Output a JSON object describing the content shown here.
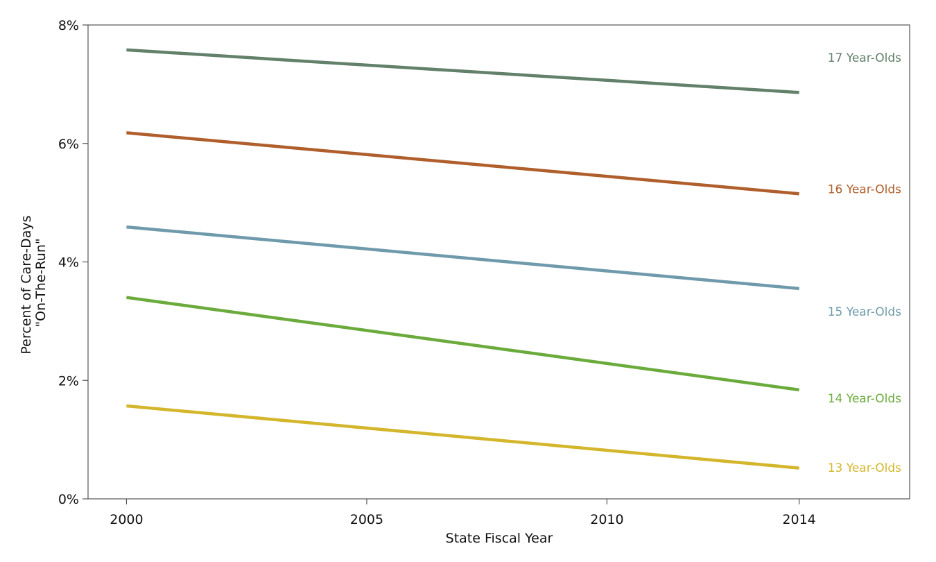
{
  "chart_data": {
    "type": "line",
    "xlabel": "State Fiscal Year",
    "ylabel_lines": [
      "Percent of Care-Days",
      "\"On-The-Run\""
    ],
    "xlim": [
      1999.2,
      2016.3
    ],
    "ylim": [
      0,
      8
    ],
    "x_ticks": [
      2000,
      2005,
      2010,
      2014
    ],
    "y_ticks": [
      0,
      2,
      4,
      6,
      8
    ],
    "y_tick_suffix": "%",
    "grid": false,
    "legend": "direct-labels-right",
    "x": [
      2000,
      2014
    ],
    "series": [
      {
        "name": "17 Year-Olds",
        "color": "#62806a",
        "values": [
          7.58,
          6.86
        ],
        "label_y": 7.45
      },
      {
        "name": "16 Year-Olds",
        "color": "#b05f2c",
        "values": [
          6.18,
          5.15
        ],
        "label_y": 5.23
      },
      {
        "name": "15 Year-Olds",
        "color": "#6f9aab",
        "values": [
          4.59,
          3.55
        ],
        "label_y": 3.16
      },
      {
        "name": "14 Year-Olds",
        "color": "#6aab3c",
        "values": [
          3.4,
          1.84
        ],
        "label_y": 1.7
      },
      {
        "name": "13 Year-Olds",
        "color": "#d4b62c",
        "values": [
          1.57,
          0.52
        ],
        "label_y": 0.53
      }
    ]
  }
}
